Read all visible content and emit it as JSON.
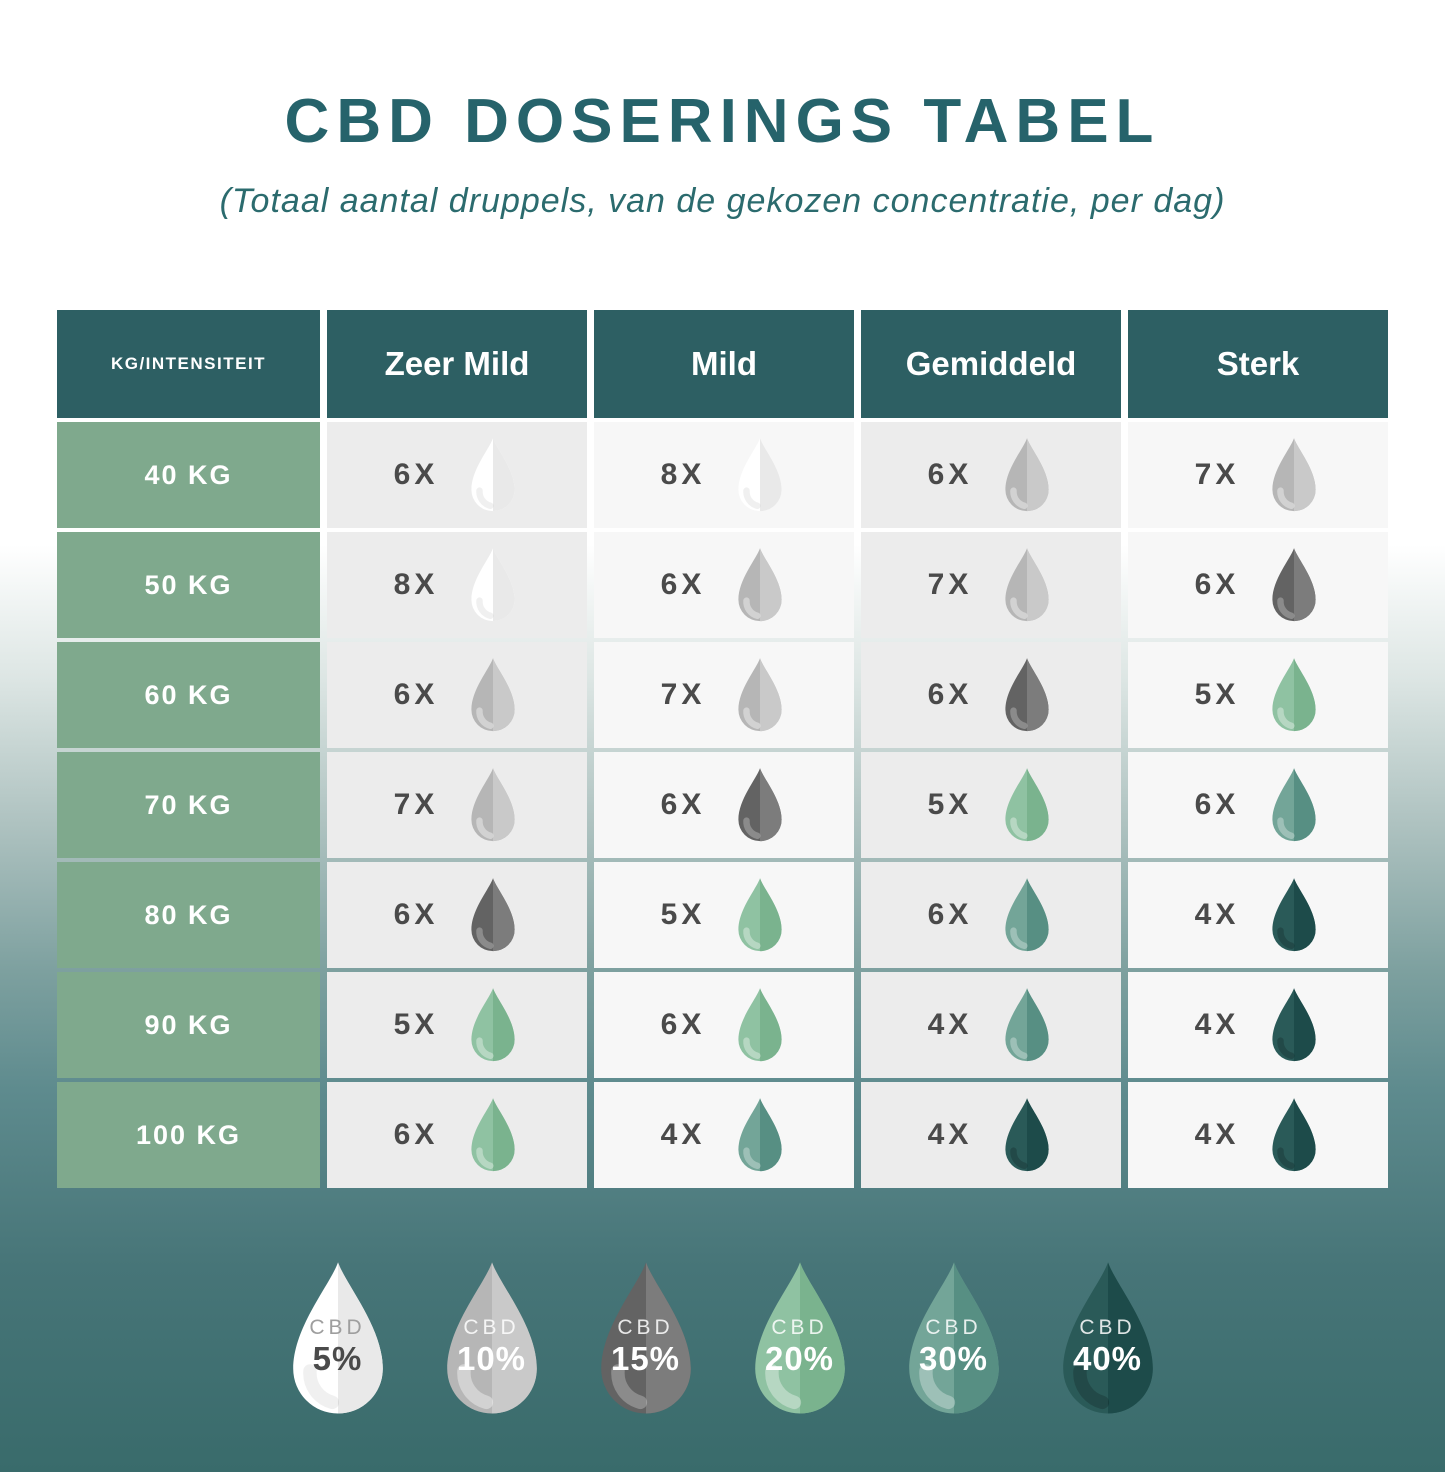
{
  "title": "CBD DOSERINGS TABEL",
  "subtitle": "(Totaal aantal druppels, van de gekozen concentratie, per dag)",
  "chart_data": {
    "type": "table",
    "corner_label": "KG/INTENSITEIT",
    "columns": [
      "Zeer Mild",
      "Mild",
      "Gemiddeld",
      "Sterk"
    ],
    "rows": [
      {
        "weight": "40 KG",
        "cells": [
          {
            "count": "6X",
            "cbd": "5%"
          },
          {
            "count": "8X",
            "cbd": "5%"
          },
          {
            "count": "6X",
            "cbd": "10%"
          },
          {
            "count": "7X",
            "cbd": "10%"
          }
        ]
      },
      {
        "weight": "50 KG",
        "cells": [
          {
            "count": "8X",
            "cbd": "5%"
          },
          {
            "count": "6X",
            "cbd": "10%"
          },
          {
            "count": "7X",
            "cbd": "10%"
          },
          {
            "count": "6X",
            "cbd": "15%"
          }
        ]
      },
      {
        "weight": "60 KG",
        "cells": [
          {
            "count": "6X",
            "cbd": "10%"
          },
          {
            "count": "7X",
            "cbd": "10%"
          },
          {
            "count": "6X",
            "cbd": "15%"
          },
          {
            "count": "5X",
            "cbd": "20%"
          }
        ]
      },
      {
        "weight": "70 KG",
        "cells": [
          {
            "count": "7X",
            "cbd": "10%"
          },
          {
            "count": "6X",
            "cbd": "15%"
          },
          {
            "count": "5X",
            "cbd": "20%"
          },
          {
            "count": "6X",
            "cbd": "30%"
          }
        ]
      },
      {
        "weight": "80 KG",
        "cells": [
          {
            "count": "6X",
            "cbd": "15%"
          },
          {
            "count": "5X",
            "cbd": "20%"
          },
          {
            "count": "6X",
            "cbd": "30%"
          },
          {
            "count": "4X",
            "cbd": "40%"
          }
        ]
      },
      {
        "weight": "90 KG",
        "cells": [
          {
            "count": "5X",
            "cbd": "20%"
          },
          {
            "count": "6X",
            "cbd": "20%"
          },
          {
            "count": "4X",
            "cbd": "30%"
          },
          {
            "count": "4X",
            "cbd": "40%"
          }
        ]
      },
      {
        "weight": "100 KG",
        "cells": [
          {
            "count": "6X",
            "cbd": "20%"
          },
          {
            "count": "4X",
            "cbd": "30%"
          },
          {
            "count": "4X",
            "cbd": "40%"
          },
          {
            "count": "4X",
            "cbd": "40%"
          }
        ]
      }
    ]
  },
  "drops": {
    "5%": {
      "left": "#ffffff",
      "right": "#e9e9e9",
      "shine": "rgba(0,0,0,0.06)"
    },
    "10%": {
      "left": "#b6b6b6",
      "right": "#c9c9c9",
      "shine": "rgba(255,255,255,0.38)"
    },
    "15%": {
      "left": "#636363",
      "right": "#7c7c7c",
      "shine": "rgba(255,255,255,0.26)"
    },
    "20%": {
      "left": "#8fc2a2",
      "right": "#7ab38e",
      "shine": "rgba(255,255,255,0.35)"
    },
    "30%": {
      "left": "#73a598",
      "right": "#578f83",
      "shine": "rgba(255,255,255,0.30)"
    },
    "40%": {
      "left": "#2a5a58",
      "right": "#1d4b4a",
      "shine": "rgba(0,0,0,0.18)"
    }
  },
  "legend": {
    "label": "CBD",
    "items": [
      {
        "percent": "5%",
        "label_color": "#9e9e9e",
        "percent_color": "#4a4a4a"
      },
      {
        "percent": "10%",
        "label_color": "rgba(255,255,255,0.85)",
        "percent_color": "#ffffff"
      },
      {
        "percent": "15%",
        "label_color": "rgba(255,255,255,0.85)",
        "percent_color": "#ffffff"
      },
      {
        "percent": "20%",
        "label_color": "rgba(255,255,255,0.85)",
        "percent_color": "#ffffff"
      },
      {
        "percent": "30%",
        "label_color": "rgba(255,255,255,0.85)",
        "percent_color": "#ffffff"
      },
      {
        "percent": "40%",
        "label_color": "rgba(255,255,255,0.85)",
        "percent_color": "#ffffff"
      }
    ]
  },
  "colors": {
    "title": "#26636b",
    "subtitle": "#2b6b6e",
    "header_bg": "#2d5f63",
    "header_text": "#ffffff",
    "weight_bg": "#7fa98d",
    "weight_text": "#ffffff",
    "cell_bg_a": "#ececec",
    "cell_bg_b": "#f7f7f7",
    "count_text": "#4a4a4a",
    "background_top": "#ffffff",
    "background_bottom": "#396b6b"
  }
}
